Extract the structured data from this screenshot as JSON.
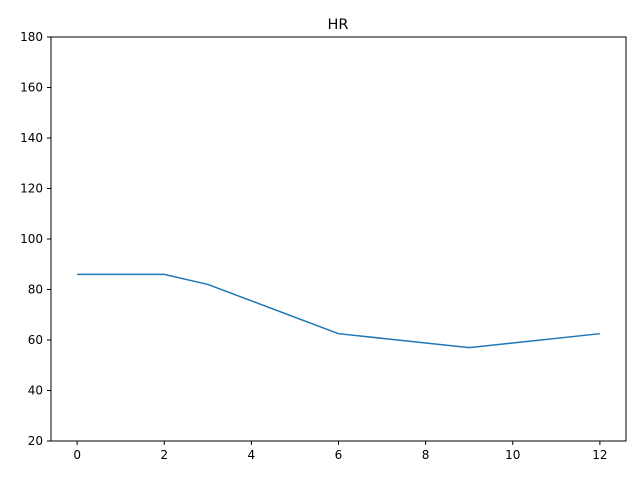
{
  "chart_data": {
    "type": "line",
    "title": "HR",
    "xlabel": "",
    "ylabel": "",
    "xlim": [
      -0.6,
      12.6
    ],
    "ylim": [
      20,
      180
    ],
    "xticks": [
      0,
      2,
      4,
      6,
      8,
      10,
      12
    ],
    "yticks": [
      20,
      40,
      60,
      80,
      100,
      120,
      140,
      160,
      180
    ],
    "grid": false,
    "series": [
      {
        "color": "#1f77b4",
        "x": [
          0,
          2,
          3,
          6,
          9,
          12
        ],
        "y": [
          86,
          86,
          82,
          62.5,
          57,
          62.5
        ]
      }
    ]
  }
}
